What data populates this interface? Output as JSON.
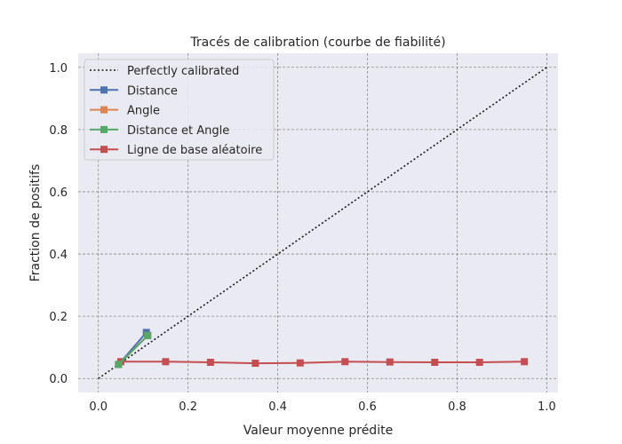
{
  "chart_data": {
    "type": "line",
    "title": "Tracés de calibration (courbe de fiabilité)",
    "xlabel": "Valeur moyenne prédite",
    "ylabel": "Fraction de positifs",
    "xlim": [
      -0.045,
      1.025
    ],
    "ylim": [
      -0.045,
      1.045
    ],
    "xticks": [
      "0.0",
      "0.2",
      "0.4",
      "0.6",
      "0.8",
      "1.0"
    ],
    "yticks": [
      "0.0",
      "0.2",
      "0.4",
      "0.6",
      "0.8",
      "1.0"
    ],
    "grid": true,
    "legend_position": "top-left",
    "series": [
      {
        "name": "Perfectly calibrated",
        "style": "dotted",
        "marker": "none",
        "color": "#1a1a1a",
        "x": [
          0,
          1
        ],
        "y": [
          0,
          1
        ]
      },
      {
        "name": "Distance",
        "style": "solid",
        "marker": "square",
        "color": "#4c72b0",
        "x": [
          0.045,
          0.107
        ],
        "y": [
          0.045,
          0.148
        ]
      },
      {
        "name": "Angle",
        "style": "solid",
        "marker": "square",
        "color": "#dd8452",
        "x": [
          0.045,
          0.11
        ],
        "y": [
          0.045,
          0.138
        ]
      },
      {
        "name": "Distance et Angle",
        "style": "solid",
        "marker": "square",
        "color": "#55a868",
        "x": [
          0.045,
          0.11
        ],
        "y": [
          0.045,
          0.138
        ]
      },
      {
        "name": "Ligne de base aléatoire",
        "style": "solid",
        "marker": "square",
        "color": "#c44e52",
        "x": [
          0.05,
          0.15,
          0.25,
          0.35,
          0.45,
          0.55,
          0.65,
          0.75,
          0.85,
          0.95
        ],
        "y": [
          0.054,
          0.054,
          0.052,
          0.049,
          0.05,
          0.054,
          0.053,
          0.052,
          0.052,
          0.054
        ]
      }
    ]
  }
}
